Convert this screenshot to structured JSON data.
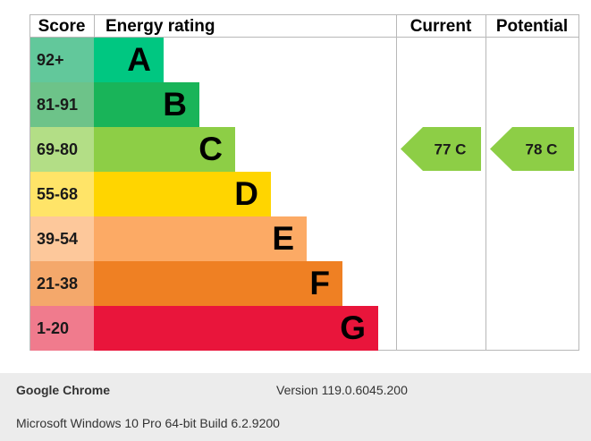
{
  "chart_data": {
    "type": "bar",
    "headers": {
      "score": "Score",
      "rating": "Energy rating",
      "current": "Current",
      "potential": "Potential"
    },
    "bands": [
      {
        "score": "92+",
        "letter": "A",
        "bar_color": "#00c781",
        "score_bg": "#62c89b",
        "length": 1
      },
      {
        "score": "81-91",
        "letter": "B",
        "bar_color": "#19b459",
        "score_bg": "#6dc389",
        "length": 2
      },
      {
        "score": "69-80",
        "letter": "C",
        "bar_color": "#8dce46",
        "score_bg": "#b3de86",
        "length": 3
      },
      {
        "score": "55-68",
        "letter": "D",
        "bar_color": "#ffd500",
        "score_bg": "#ffe468",
        "length": 4
      },
      {
        "score": "39-54",
        "letter": "E",
        "bar_color": "#fcaa65",
        "score_bg": "#fdc89b",
        "length": 5
      },
      {
        "score": "21-38",
        "letter": "F",
        "bar_color": "#ef8023",
        "score_bg": "#f4a86b",
        "length": 6
      },
      {
        "score": "1-20",
        "letter": "G",
        "bar_color": "#e9153b",
        "score_bg": "#f07b8d",
        "length": 7
      }
    ],
    "current": {
      "value": 77,
      "letter": "C",
      "label": "77  C",
      "color": "#8dce46"
    },
    "potential": {
      "value": 78,
      "letter": "C",
      "label": "78  C",
      "color": "#8dce46"
    }
  },
  "footer": {
    "browser_name": "Google Chrome",
    "browser_version": "Version 119.0.6045.200",
    "os_info": "Microsoft Windows 10 Pro 64-bit Build 6.2.9200"
  }
}
